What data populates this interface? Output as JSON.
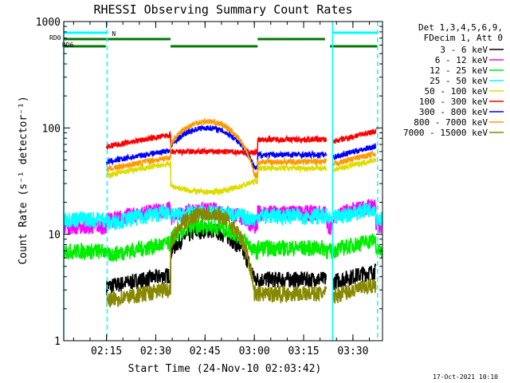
{
  "chart_data": {
    "type": "line",
    "title": "RHESSI Observing Summary Count Rates",
    "xlabel": "Start Time (24-Nov-10 02:03:42)",
    "ylabel": "Count Rate (s⁻¹ detector⁻¹)",
    "yscale": "log",
    "ylim": [
      1,
      1000
    ],
    "xlim_minutes": [
      2.0,
      99.0
    ],
    "y_ticks": [
      {
        "value": 1,
        "label": "1"
      },
      {
        "value": 10,
        "label": "10"
      },
      {
        "value": 100,
        "label": "100"
      },
      {
        "value": 1000,
        "label": "1000"
      }
    ],
    "x_ticks": [
      {
        "minutes": 15,
        "label": "02:15"
      },
      {
        "minutes": 30,
        "label": "02:30"
      },
      {
        "minutes": 45,
        "label": "02:45"
      },
      {
        "minutes": 60,
        "label": "03:00"
      },
      {
        "minutes": 75,
        "label": "03:15"
      },
      {
        "minutes": 90,
        "label": "03:30"
      }
    ],
    "legend_header": [
      "Det 1,3,4,5,6,9,",
      "FDecim 1, Att 0"
    ],
    "series": [
      {
        "name": "3 - 6 keV",
        "color": "#000000",
        "night": 0,
        "day": [
          3.8,
          11
        ]
      },
      {
        "name": "6 - 12 keV",
        "color": "#ff00ff",
        "night": 12,
        "day": [
          16,
          17
        ]
      },
      {
        "name": "12 - 25 keV",
        "color": "#00ee00",
        "night": 7,
        "day": [
          7.5,
          12
        ]
      },
      {
        "name": "25 - 50 keV",
        "color": "#00ffff",
        "night": 14,
        "day": [
          15,
          16
        ]
      },
      {
        "name": "50 - 100 keV",
        "color": "#dddd00",
        "night": 0,
        "day": [
          42,
          25
        ]
      },
      {
        "name": "100 - 300 keV",
        "color": "#ff0000",
        "night": 0,
        "day": [
          78,
          60
        ]
      },
      {
        "name": "300 - 800 keV",
        "color": "#0000ff",
        "night": 0,
        "day": [
          56,
          100
        ]
      },
      {
        "name": "800 - 7000 keV",
        "color": "#ff9900",
        "night": 0,
        "day": [
          48,
          115
        ]
      },
      {
        "name": "7000 - 15000 keV",
        "color": "#888800",
        "night": 0,
        "day": [
          2.8,
          16
        ]
      }
    ],
    "day_intervals": [
      [
        15.0,
        34.5
      ],
      [
        61.0,
        82.0
      ],
      [
        84.0,
        97.0
      ]
    ],
    "peak_centers": [
      45.0,
      45.0,
      45.0
    ],
    "bars": [
      {
        "label": "N",
        "color": "#00ffff",
        "segments": [
          [
            2.0,
            15.2
          ],
          [
            83.8,
            97.5
          ]
        ],
        "level": 0
      },
      {
        "label": "",
        "color": "#007700",
        "segments": [
          [
            2.0,
            34.5
          ],
          [
            61.0,
            81.5
          ]
        ],
        "level": 1
      },
      {
        "label": "",
        "color": "#007700",
        "segments": [
          [
            2.0,
            14.8
          ],
          [
            34.5,
            61.0
          ],
          [
            83.0,
            97.5
          ]
        ],
        "level": 2
      }
    ],
    "bar_labels": [
      "RD0",
      "RD6"
    ],
    "vlines": [
      {
        "minutes": 2.0,
        "color": "#00ffff",
        "dashed": false
      },
      {
        "minutes": 15.2,
        "color": "#00ffff",
        "dashed": true
      },
      {
        "minutes": 83.8,
        "color": "#00ffff",
        "dashed": false
      },
      {
        "minutes": 97.5,
        "color": "#00ffff",
        "dashed": true
      }
    ]
  },
  "footer": {
    "date": "17-Oct-2021 10:10"
  }
}
